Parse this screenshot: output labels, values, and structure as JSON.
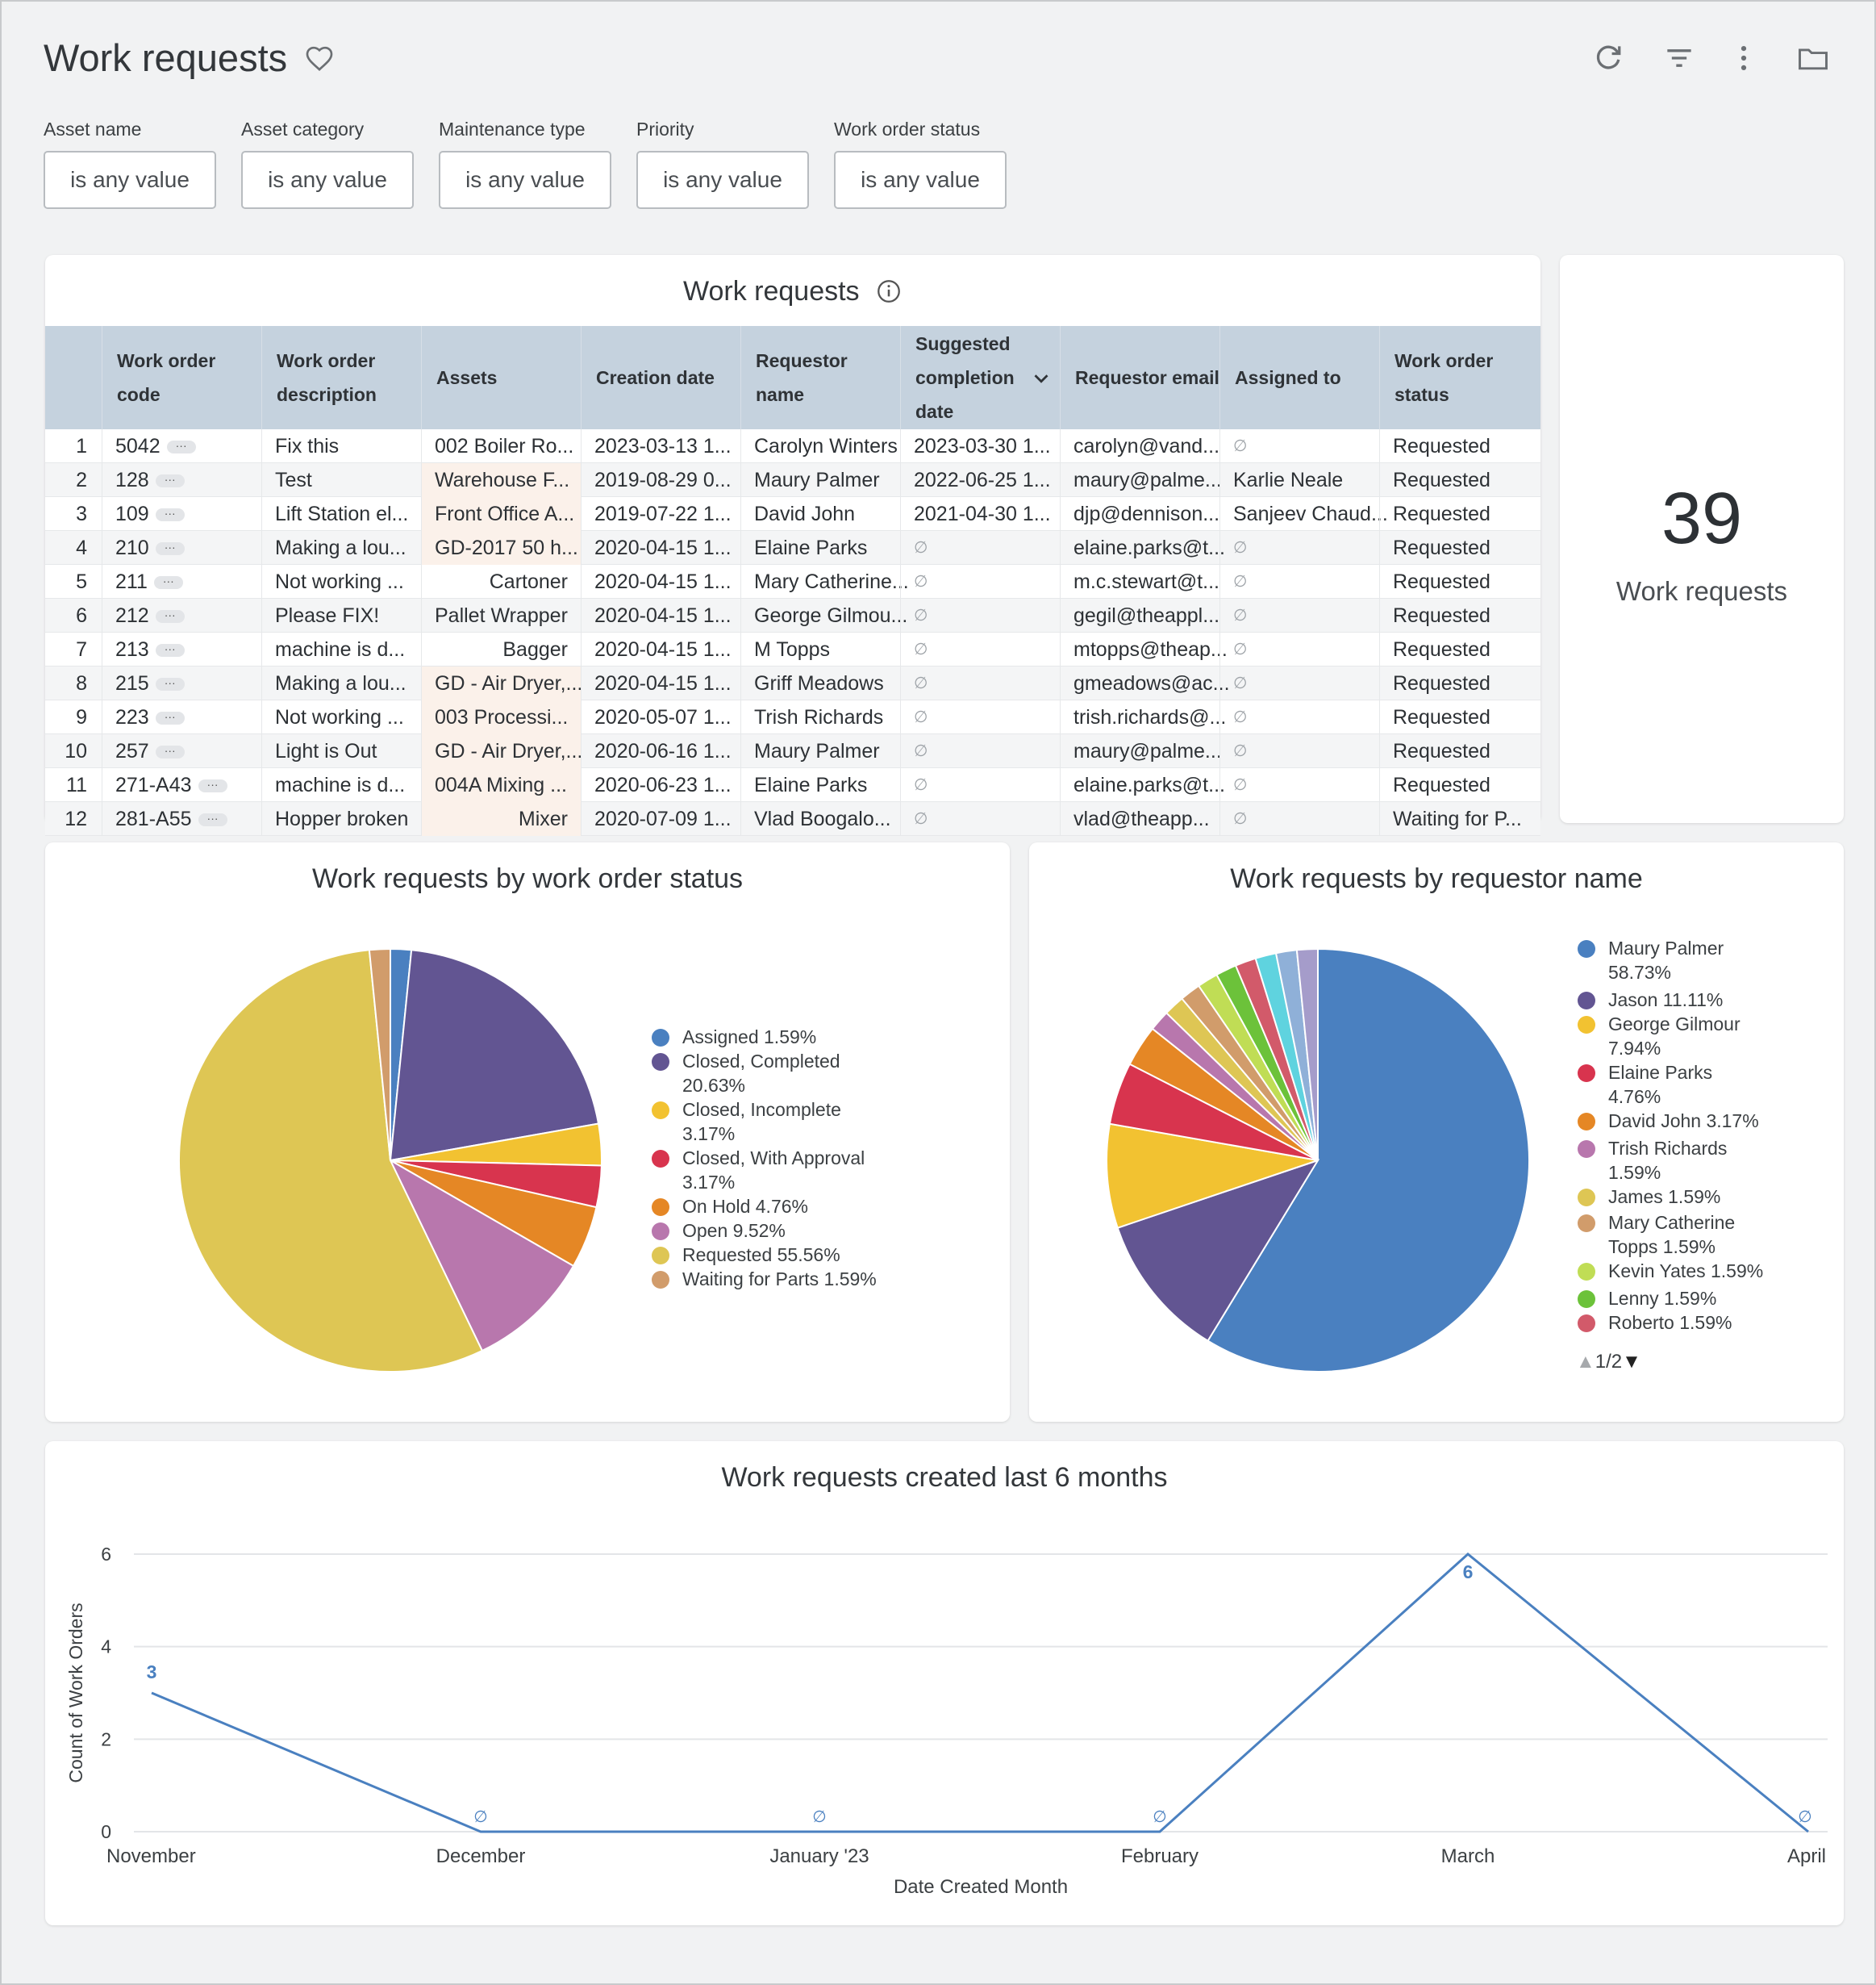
{
  "header": {
    "title": "Work requests",
    "icons": [
      "heart-outline-icon",
      "refresh-icon",
      "filter-icon",
      "more-vert-icon",
      "folder-icon"
    ]
  },
  "filters": [
    {
      "label": "Asset name",
      "value": "is any value"
    },
    {
      "label": "Asset category",
      "value": "is any value"
    },
    {
      "label": "Maintenance type",
      "value": "is any value"
    },
    {
      "label": "Priority",
      "value": "is any value"
    },
    {
      "label": "Work order status",
      "value": "is any value"
    }
  ],
  "table": {
    "title": "Work requests",
    "columns": [
      "Work order code",
      "Work order description",
      "Assets",
      "Creation date",
      "Requestor name",
      "Suggested completion date",
      "Requestor email",
      "Assigned to",
      "Work order status"
    ],
    "null_symbol": "∅",
    "rows": [
      [
        "1",
        "5042",
        "Fix this",
        "002 Boiler Ro...",
        "2023-03-13 1...",
        "Carolyn Winters",
        "2023-03-30 1...",
        "carolyn@vand...",
        "∅",
        "Requested"
      ],
      [
        "2",
        "128",
        "Test",
        "Warehouse F...",
        "2019-08-29 0...",
        "Maury Palmer",
        "2022-06-25 1...",
        "maury@palme...",
        "Karlie Neale",
        "Requested"
      ],
      [
        "3",
        "109",
        "Lift Station el...",
        "Front Office A...",
        "2019-07-22 1...",
        "David John",
        "2021-04-30 1...",
        "djp@dennison...",
        "Sanjeev Chaud...",
        "Requested"
      ],
      [
        "4",
        "210",
        "Making a lou...",
        "GD-2017 50 h...",
        "2020-04-15 1...",
        "Elaine Parks",
        "∅",
        "elaine.parks@t...",
        "∅",
        "Requested"
      ],
      [
        "5",
        "211",
        "Not working ...",
        "Cartoner",
        "2020-04-15 1...",
        "Mary Catherine...",
        "∅",
        "m.c.stewart@t...",
        "∅",
        "Requested"
      ],
      [
        "6",
        "212",
        "Please FIX!",
        "Pallet Wrapper",
        "2020-04-15 1...",
        "George Gilmou...",
        "∅",
        "gegil@theappl...",
        "∅",
        "Requested"
      ],
      [
        "7",
        "213",
        "machine is d...",
        "Bagger",
        "2020-04-15 1...",
        "M Topps",
        "∅",
        "mtopps@theap...",
        "∅",
        "Requested"
      ],
      [
        "8",
        "215",
        "Making a lou...",
        "GD - Air Dryer,...",
        "2020-04-15 1...",
        "Griff Meadows",
        "∅",
        "gmeadows@ac...",
        "∅",
        "Requested"
      ],
      [
        "9",
        "223",
        "Not working ...",
        "003 Processi...",
        "2020-05-07 1...",
        "Trish Richards",
        "∅",
        "trish.richards@...",
        "∅",
        "Requested"
      ],
      [
        "10",
        "257",
        "Light is Out",
        "GD - Air Dryer,...",
        "2020-06-16 1...",
        "Maury Palmer",
        "∅",
        "maury@palme...",
        "∅",
        "Requested"
      ],
      [
        "11",
        "271-A43",
        "machine is d...",
        "004A Mixing ...",
        "2020-06-23 1...",
        "Elaine Parks",
        "∅",
        "elaine.parks@t...",
        "∅",
        "Requested"
      ],
      [
        "12",
        "281-A55",
        "Hopper broken",
        "Mixer",
        "2020-07-09 1...",
        "Vlad Boogalo...",
        "∅",
        "vlad@theapp...",
        "∅",
        "Waiting for P..."
      ]
    ]
  },
  "kpi": {
    "value": "39",
    "label": "Work requests"
  },
  "chart_data": [
    {
      "type": "pie",
      "title": "Work requests by work order status",
      "slices": [
        {
          "label": "Assigned 1.59%",
          "value": 1.59,
          "color": "#4a80c0"
        },
        {
          "label": "Closed, Completed 20.63%",
          "value": 20.63,
          "color": "#625592"
        },
        {
          "label": "Closed, Incomplete 3.17%",
          "value": 3.17,
          "color": "#f2c231"
        },
        {
          "label": "Closed, With Approval 3.17%",
          "value": 3.17,
          "color": "#d8344e"
        },
        {
          "label": "On Hold 4.76%",
          "value": 4.76,
          "color": "#e58725"
        },
        {
          "label": "Open 9.52%",
          "value": 9.52,
          "color": "#b877ad"
        },
        {
          "label": "Requested 55.56%",
          "value": 55.56,
          "color": "#dec654"
        },
        {
          "label": "Waiting for Parts 1.59%",
          "value": 1.59,
          "color": "#d19c6b"
        }
      ],
      "legend_placement": "right"
    },
    {
      "type": "pie",
      "title": "Work requests by requestor name",
      "slices": [
        {
          "label": "Maury Palmer 58.73%",
          "value": 58.73,
          "color": "#4a80c0"
        },
        {
          "label": "Jason 11.11%",
          "value": 11.11,
          "color": "#625592"
        },
        {
          "label": "George Gilmour 7.94%",
          "value": 7.94,
          "color": "#f2c231"
        },
        {
          "label": "Elaine Parks 4.76%",
          "value": 4.76,
          "color": "#d8344e"
        },
        {
          "label": "David John 3.17%",
          "value": 3.17,
          "color": "#e58725"
        },
        {
          "label": "Trish Richards 1.59%",
          "value": 1.59,
          "color": "#b877ad"
        },
        {
          "label": "James 1.59%",
          "value": 1.59,
          "color": "#dec654"
        },
        {
          "label": "Mary Catherine Topps 1.59%",
          "value": 1.59,
          "color": "#d19c6b"
        },
        {
          "label": "Kevin Yates 1.59%",
          "value": 1.59,
          "color": "#c0dd55"
        },
        {
          "label": "Lenny 1.59%",
          "value": 1.59,
          "color": "#6cc23a"
        },
        {
          "label": "Roberto 1.59%",
          "value": 1.59,
          "color": "#d25a6a"
        },
        {
          "value": 1.59,
          "color": "#5fd3df"
        },
        {
          "value": 1.59,
          "color": "#8fb0d8"
        },
        {
          "value": 1.59,
          "color": "#a59cca"
        }
      ],
      "legend_placement": "right",
      "legend_page": "1/2"
    },
    {
      "type": "line",
      "title": "Work requests created last 6 months",
      "xlabel": "Date Created Month",
      "ylabel": "Count of Work Orders",
      "categories": [
        "November",
        "December",
        "January '23",
        "February",
        "March",
        "April"
      ],
      "values": [
        3,
        0,
        0,
        0,
        6,
        0
      ],
      "data_labels": [
        "3",
        "∅",
        "∅",
        "∅",
        "6",
        "∅"
      ],
      "yticks": [
        0,
        2,
        4,
        6
      ],
      "ylim": [
        0,
        6
      ],
      "grid": true,
      "color": "#4a80c0"
    }
  ]
}
